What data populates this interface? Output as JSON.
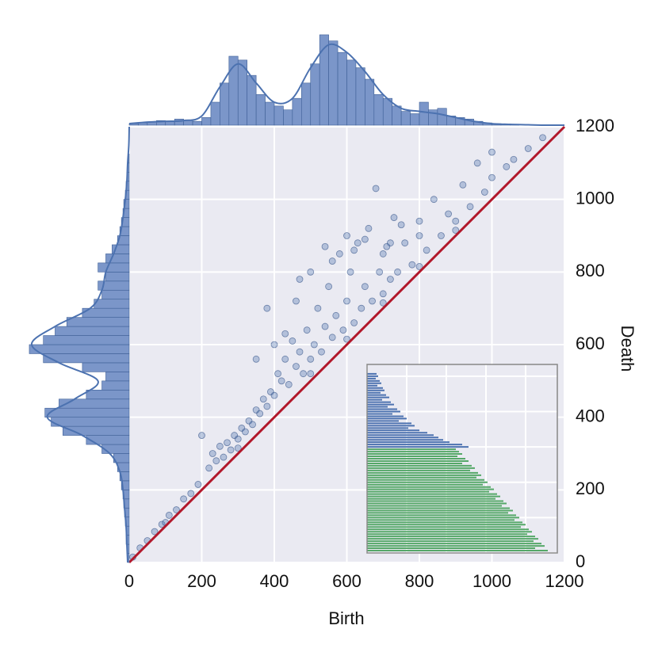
{
  "chart_data": [
    {
      "type": "scatter",
      "xlabel": "Birth",
      "ylabel": "Death",
      "xlim": [
        0,
        1200
      ],
      "ylim": [
        0,
        1200
      ],
      "xticks": [
        0,
        200,
        400,
        600,
        800,
        1000,
        1200
      ],
      "yticks": [
        0,
        200,
        400,
        600,
        800,
        1000,
        1200
      ],
      "grid": true,
      "color": "#4c72b0",
      "x": [
        10,
        30,
        50,
        70,
        90,
        110,
        130,
        150,
        170,
        190,
        200,
        220,
        230,
        240,
        250,
        260,
        270,
        280,
        290,
        300,
        310,
        320,
        330,
        340,
        350,
        360,
        370,
        380,
        390,
        400,
        410,
        420,
        430,
        440,
        450,
        460,
        470,
        480,
        490,
        500,
        510,
        520,
        530,
        540,
        550,
        560,
        570,
        580,
        590,
        600,
        610,
        620,
        630,
        640,
        650,
        660,
        670,
        680,
        690,
        700,
        710,
        720,
        730,
        740,
        760,
        780,
        800,
        820,
        840,
        860,
        880,
        900,
        920,
        940,
        960,
        980,
        1000,
        1000,
        1040,
        1060,
        1100,
        1140,
        380,
        400,
        430,
        350,
        460,
        500,
        540,
        600,
        620,
        560,
        470,
        650,
        700,
        750,
        720,
        800,
        100,
        300,
        500,
        600,
        700,
        800,
        900
      ],
      "y": [
        15,
        40,
        60,
        85,
        105,
        130,
        145,
        175,
        190,
        215,
        350,
        260,
        300,
        280,
        320,
        290,
        330,
        310,
        350,
        340,
        370,
        360,
        390,
        380,
        420,
        410,
        450,
        430,
        470,
        460,
        520,
        500,
        560,
        490,
        610,
        540,
        580,
        520,
        640,
        560,
        600,
        700,
        580,
        650,
        760,
        620,
        680,
        850,
        640,
        720,
        800,
        660,
        880,
        700,
        760,
        920,
        720,
        1030,
        800,
        740,
        870,
        780,
        950,
        800,
        880,
        820,
        940,
        860,
        1000,
        900,
        960,
        940,
        1040,
        980,
        1100,
        1020,
        1130,
        1060,
        1090,
        1110,
        1140,
        1170,
        700,
        600,
        630,
        560,
        720,
        800,
        870,
        900,
        860,
        830,
        780,
        890,
        850,
        930,
        880,
        900,
        110,
        315,
        520,
        615,
        715,
        815,
        915
      ],
      "reference_line": {
        "color": "#b2182b",
        "x": [
          0,
          1200
        ],
        "y": [
          0,
          1200
        ]
      }
    },
    {
      "type": "histogram",
      "orientation": "vertical",
      "color": "#7b96c9",
      "line_color": "#4c72b0",
      "xlim": [
        0,
        1200
      ],
      "ylim": [
        0,
        120
      ],
      "bins": [
        0,
        25,
        50,
        75,
        100,
        125,
        150,
        175,
        200,
        225,
        250,
        275,
        300,
        325,
        350,
        375,
        400,
        425,
        450,
        475,
        500,
        525,
        550,
        575,
        600,
        625,
        650,
        675,
        700,
        725,
        750,
        775,
        800,
        825,
        850,
        875,
        900,
        925,
        950,
        975,
        1000,
        1025,
        1050,
        1075,
        1100
      ],
      "counts": [
        2,
        3,
        4,
        6,
        5,
        8,
        6,
        5,
        10,
        30,
        55,
        90,
        85,
        65,
        40,
        30,
        25,
        20,
        35,
        55,
        80,
        118,
        110,
        95,
        85,
        75,
        60,
        40,
        35,
        25,
        18,
        15,
        30,
        20,
        22,
        12,
        10,
        8,
        5,
        3,
        2,
        1,
        1,
        0
      ],
      "kde": {
        "at": [
          0,
          50,
          100,
          150,
          200,
          250,
          300,
          350,
          400,
          450,
          500,
          550,
          600,
          650,
          700,
          750,
          800,
          850,
          900,
          950,
          1000,
          1050,
          1100,
          1150,
          1200
        ],
        "density": [
          2,
          4,
          5,
          6,
          12,
          50,
          80,
          55,
          30,
          35,
          75,
          105,
          95,
          70,
          40,
          22,
          18,
          15,
          10,
          5,
          2,
          1,
          0.5,
          0,
          0
        ]
      }
    },
    {
      "type": "histogram",
      "orientation": "horizontal",
      "x_inverted": true,
      "color": "#7b96c9",
      "line_color": "#4c72b0",
      "ylim": [
        0,
        1200
      ],
      "xlim": [
        0,
        130
      ],
      "bins": [
        0,
        25,
        50,
        75,
        100,
        125,
        150,
        175,
        200,
        225,
        250,
        275,
        300,
        325,
        350,
        375,
        400,
        425,
        450,
        475,
        500,
        525,
        550,
        575,
        600,
        625,
        650,
        675,
        700,
        725,
        750,
        775,
        800,
        825,
        850,
        875,
        900,
        925,
        950,
        975,
        1000,
        1025,
        1050,
        1075,
        1100,
        1125
      ],
      "counts": [
        2,
        3,
        4,
        4,
        5,
        6,
        7,
        8,
        10,
        12,
        15,
        20,
        35,
        55,
        85,
        100,
        108,
        90,
        55,
        35,
        30,
        60,
        110,
        128,
        110,
        95,
        80,
        60,
        45,
        35,
        40,
        30,
        40,
        30,
        22,
        15,
        12,
        10,
        8,
        7,
        5,
        4,
        3,
        2,
        1
      ],
      "kde": {
        "at": [
          0,
          50,
          100,
          150,
          200,
          250,
          300,
          350,
          400,
          450,
          500,
          550,
          600,
          650,
          700,
          750,
          800,
          850,
          900,
          950,
          1000,
          1050,
          1100,
          1150,
          1200
        ],
        "density": [
          2,
          3,
          4,
          6,
          8,
          12,
          25,
          60,
          105,
          70,
          40,
          90,
          125,
          95,
          50,
          35,
          30,
          20,
          12,
          8,
          5,
          3,
          2,
          0.5,
          0
        ]
      }
    },
    {
      "type": "barcode",
      "xlim": [
        0,
        1200
      ],
      "ylim": [
        0,
        1600
      ],
      "xticks": [
        0,
        250,
        500,
        750,
        1000
      ],
      "yticks": [
        0,
        300,
        600,
        900,
        1200,
        1500
      ],
      "grid": true,
      "series": [
        {
          "color": "#4c72b0",
          "y": [
            1520,
            1500,
            1480,
            1460,
            1440,
            1420,
            1400,
            1380,
            1360,
            1340,
            1320,
            1300,
            1280,
            1260,
            1240,
            1220,
            1200,
            1180,
            1160,
            1140,
            1120,
            1100,
            1080,
            1060,
            1040,
            1020,
            1000,
            980,
            960,
            940,
            920,
            900
          ],
          "values": [
            60,
            70,
            55,
            80,
            90,
            65,
            100,
            110,
            85,
            120,
            140,
            95,
            150,
            170,
            130,
            190,
            210,
            160,
            230,
            250,
            200,
            280,
            300,
            260,
            330,
            380,
            420,
            450,
            480,
            520,
            600,
            640
          ]
        },
        {
          "color": "#55a868",
          "y": [
            880,
            860,
            840,
            820,
            800,
            780,
            760,
            740,
            720,
            700,
            680,
            660,
            640,
            620,
            600,
            580,
            560,
            540,
            520,
            500,
            480,
            460,
            440,
            420,
            400,
            380,
            360,
            340,
            320,
            300,
            280,
            260,
            240,
            220,
            200,
            180,
            160,
            140,
            120,
            100,
            80,
            60,
            40,
            20
          ],
          "values": [
            560,
            580,
            600,
            570,
            620,
            640,
            600,
            660,
            680,
            650,
            700,
            720,
            690,
            740,
            760,
            730,
            780,
            800,
            770,
            820,
            840,
            810,
            860,
            880,
            850,
            900,
            920,
            890,
            940,
            960,
            930,
            980,
            1000,
            970,
            1020,
            1040,
            1010,
            1060,
            1080,
            1050,
            1100,
            1120,
            1060,
            1140
          ]
        }
      ]
    }
  ]
}
